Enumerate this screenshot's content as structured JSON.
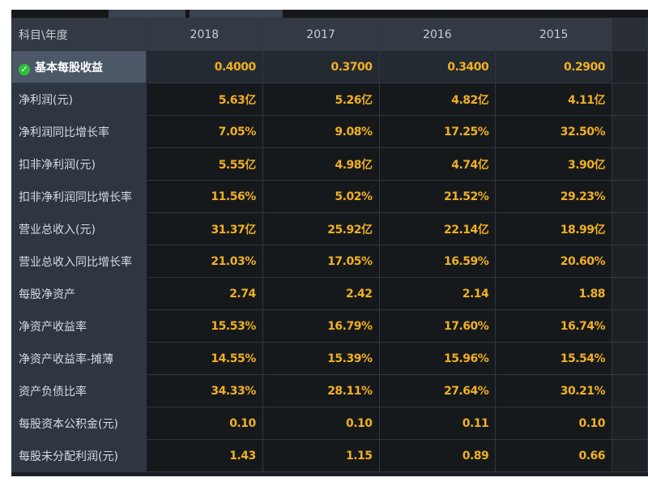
{
  "header": {
    "label": "科目\\年度",
    "years": [
      "2018",
      "2017",
      "2016",
      "2015"
    ]
  },
  "rows": [
    {
      "label": "基本每股收益",
      "values": [
        "0.4000",
        "0.3700",
        "0.3400",
        "0.2900"
      ],
      "selected": true
    },
    {
      "label": "净利润(元)",
      "values": [
        "5.63亿",
        "5.26亿",
        "4.82亿",
        "4.11亿"
      ]
    },
    {
      "label": "净利润同比增长率",
      "values": [
        "7.05%",
        "9.08%",
        "17.25%",
        "32.50%"
      ]
    },
    {
      "label": "扣非净利润(元)",
      "values": [
        "5.55亿",
        "4.98亿",
        "4.74亿",
        "3.90亿"
      ]
    },
    {
      "label": "扣非净利润同比增长率",
      "values": [
        "11.56%",
        "5.02%",
        "21.52%",
        "29.23%"
      ]
    },
    {
      "label": "营业总收入(元)",
      "values": [
        "31.37亿",
        "25.92亿",
        "22.14亿",
        "18.99亿"
      ]
    },
    {
      "label": "营业总收入同比增长率",
      "values": [
        "21.03%",
        "17.05%",
        "16.59%",
        "20.60%"
      ]
    },
    {
      "label": "每股净资产",
      "values": [
        "2.74",
        "2.42",
        "2.14",
        "1.88"
      ]
    },
    {
      "label": "净资产收益率",
      "values": [
        "15.53%",
        "16.79%",
        "17.60%",
        "16.74%"
      ]
    },
    {
      "label": "净资产收益率-摊薄",
      "values": [
        "14.55%",
        "15.39%",
        "15.96%",
        "15.54%"
      ]
    },
    {
      "label": "资产负债比率",
      "values": [
        "34.33%",
        "28.11%",
        "27.64%",
        "30.21%"
      ]
    },
    {
      "label": "每股资本公积金(元)",
      "values": [
        "0.10",
        "0.10",
        "0.11",
        "0.10"
      ]
    },
    {
      "label": "每股未分配利润(元)",
      "values": [
        "1.43",
        "1.15",
        "0.89",
        "0.66"
      ]
    }
  ],
  "icons": {
    "selected_row": "check-icon"
  },
  "colors": {
    "value_text": "#f0b024",
    "check": "#2fbf3f"
  }
}
